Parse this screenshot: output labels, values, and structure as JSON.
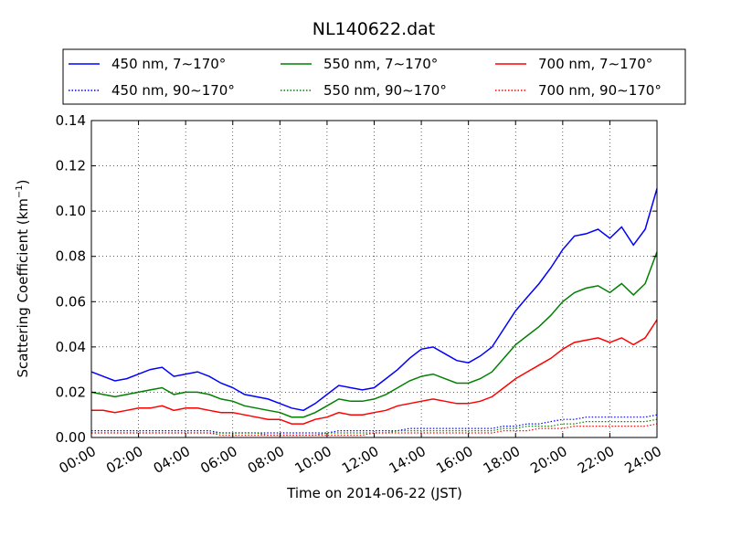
{
  "chart_data": {
    "type": "line",
    "title": "NL140622.dat",
    "xlabel": "Time on 2014-06-22 (JST)",
    "ylabel": "Scattering Coefficient (km",
    "ylabel_sup": "−1",
    "ylabel_close": ")",
    "xlim": [
      "00:00",
      "24:00"
    ],
    "ylim": [
      0.0,
      0.14
    ],
    "x_ticks": [
      "00:00",
      "02:00",
      "04:00",
      "06:00",
      "08:00",
      "10:00",
      "12:00",
      "14:00",
      "16:00",
      "18:00",
      "20:00",
      "22:00",
      "24:00"
    ],
    "y_ticks": [
      "0.00",
      "0.02",
      "0.04",
      "0.06",
      "0.08",
      "0.10",
      "0.12",
      "0.14"
    ],
    "grid": true,
    "legend_position": "top",
    "colors": {
      "blue": "#0000ff",
      "green": "#008000",
      "red": "#ff0000"
    },
    "x_hours": [
      0,
      0.5,
      1,
      1.5,
      2,
      2.5,
      3,
      3.5,
      4,
      4.5,
      5,
      5.5,
      6,
      6.5,
      7,
      7.5,
      8,
      8.5,
      9,
      9.5,
      10,
      10.5,
      11,
      11.5,
      12,
      12.5,
      13,
      13.5,
      14,
      14.5,
      15,
      15.5,
      16,
      16.5,
      17,
      17.5,
      18,
      18.5,
      19,
      19.5,
      20,
      20.5,
      21,
      21.5,
      22,
      22.5,
      23,
      23.5,
      24
    ],
    "series": [
      {
        "name": "450 nm, 7∼170°",
        "color": "#0000ff",
        "style": "solid",
        "values": [
          0.029,
          0.027,
          0.025,
          0.026,
          0.028,
          0.03,
          0.031,
          0.027,
          0.028,
          0.029,
          0.027,
          0.024,
          0.022,
          0.019,
          0.018,
          0.017,
          0.015,
          0.013,
          0.012,
          0.015,
          0.019,
          0.023,
          0.022,
          0.021,
          0.022,
          0.026,
          0.03,
          0.035,
          0.039,
          0.04,
          0.037,
          0.034,
          0.033,
          0.036,
          0.04,
          0.048,
          0.056,
          0.062,
          0.068,
          0.075,
          0.083,
          0.089,
          0.09,
          0.092,
          0.088,
          0.093,
          0.085,
          0.092,
          0.11
        ]
      },
      {
        "name": "450 nm, 90∼170°",
        "color": "#0000ff",
        "style": "dotted",
        "values": [
          0.003,
          0.003,
          0.003,
          0.003,
          0.003,
          0.003,
          0.003,
          0.003,
          0.003,
          0.003,
          0.003,
          0.002,
          0.002,
          0.002,
          0.002,
          0.002,
          0.002,
          0.002,
          0.002,
          0.002,
          0.002,
          0.003,
          0.003,
          0.003,
          0.003,
          0.003,
          0.003,
          0.004,
          0.004,
          0.004,
          0.004,
          0.004,
          0.004,
          0.004,
          0.004,
          0.005,
          0.005,
          0.006,
          0.006,
          0.007,
          0.008,
          0.008,
          0.009,
          0.009,
          0.009,
          0.009,
          0.009,
          0.009,
          0.01
        ]
      },
      {
        "name": "550 nm, 7∼170°",
        "color": "#008000",
        "style": "solid",
        "values": [
          0.02,
          0.019,
          0.018,
          0.019,
          0.02,
          0.021,
          0.022,
          0.019,
          0.02,
          0.02,
          0.019,
          0.017,
          0.016,
          0.014,
          0.013,
          0.012,
          0.011,
          0.009,
          0.009,
          0.011,
          0.014,
          0.017,
          0.016,
          0.016,
          0.017,
          0.019,
          0.022,
          0.025,
          0.027,
          0.028,
          0.026,
          0.024,
          0.024,
          0.026,
          0.029,
          0.035,
          0.041,
          0.045,
          0.049,
          0.054,
          0.06,
          0.064,
          0.066,
          0.067,
          0.064,
          0.068,
          0.063,
          0.068,
          0.082
        ]
      },
      {
        "name": "550 nm, 90∼170°",
        "color": "#008000",
        "style": "dotted",
        "values": [
          0.002,
          0.002,
          0.002,
          0.002,
          0.002,
          0.002,
          0.002,
          0.002,
          0.002,
          0.002,
          0.002,
          0.002,
          0.002,
          0.002,
          0.002,
          0.001,
          0.001,
          0.001,
          0.001,
          0.001,
          0.002,
          0.002,
          0.002,
          0.002,
          0.002,
          0.002,
          0.003,
          0.003,
          0.003,
          0.003,
          0.003,
          0.003,
          0.003,
          0.003,
          0.003,
          0.004,
          0.004,
          0.005,
          0.005,
          0.005,
          0.006,
          0.006,
          0.007,
          0.007,
          0.007,
          0.007,
          0.007,
          0.007,
          0.008
        ]
      },
      {
        "name": "700 nm, 7∼170°",
        "color": "#ff0000",
        "style": "solid",
        "values": [
          0.012,
          0.012,
          0.011,
          0.012,
          0.013,
          0.013,
          0.014,
          0.012,
          0.013,
          0.013,
          0.012,
          0.011,
          0.011,
          0.01,
          0.009,
          0.008,
          0.008,
          0.006,
          0.006,
          0.008,
          0.009,
          0.011,
          0.01,
          0.01,
          0.011,
          0.012,
          0.014,
          0.015,
          0.016,
          0.017,
          0.016,
          0.015,
          0.015,
          0.016,
          0.018,
          0.022,
          0.026,
          0.029,
          0.032,
          0.035,
          0.039,
          0.042,
          0.043,
          0.044,
          0.042,
          0.044,
          0.041,
          0.044,
          0.052
        ]
      },
      {
        "name": "700 nm, 90∼170°",
        "color": "#ff0000",
        "style": "dotted",
        "values": [
          0.002,
          0.002,
          0.002,
          0.002,
          0.002,
          0.002,
          0.002,
          0.002,
          0.002,
          0.002,
          0.002,
          0.001,
          0.001,
          0.001,
          0.001,
          0.001,
          0.001,
          0.001,
          0.001,
          0.001,
          0.001,
          0.001,
          0.001,
          0.001,
          0.002,
          0.002,
          0.002,
          0.002,
          0.002,
          0.002,
          0.002,
          0.002,
          0.002,
          0.002,
          0.002,
          0.003,
          0.003,
          0.003,
          0.004,
          0.004,
          0.004,
          0.005,
          0.005,
          0.005,
          0.005,
          0.005,
          0.005,
          0.005,
          0.006
        ]
      }
    ]
  }
}
